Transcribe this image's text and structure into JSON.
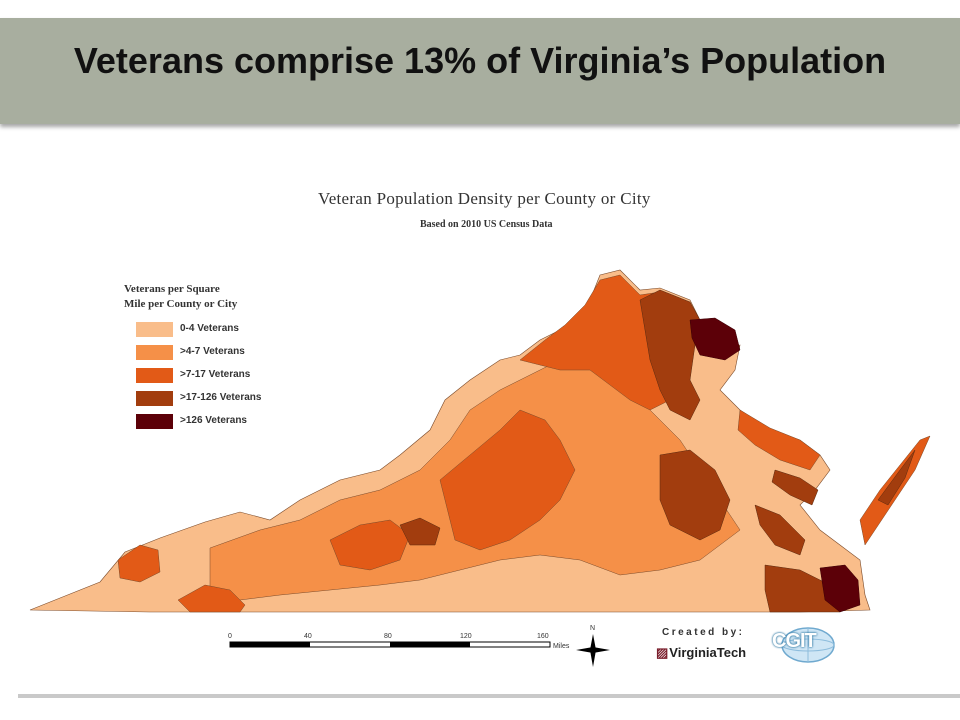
{
  "slide": {
    "title": "Veterans comprise 13% of Virginia’s Population"
  },
  "map": {
    "title": "Veteran Population Density per County or City",
    "subtitle": "Based on 2010 US Census Data",
    "legend": {
      "title_line1": "Veterans per Square",
      "title_line2": "Mile per County or City",
      "items": [
        {
          "label": "0-4 Veterans",
          "color": "#f9bd8a"
        },
        {
          "label": ">4-7 Veterans",
          "color": "#f59048"
        },
        {
          "label": ">7-17 Veterans",
          "color": "#e25a17"
        },
        {
          "label": ">17-126 Veterans",
          "color": "#a23d0e"
        },
        {
          "label": ">126 Veterans",
          "color": "#5c0008"
        }
      ]
    },
    "scale_bar": {
      "ticks": [
        "0",
        "40",
        "80",
        "120",
        "160"
      ],
      "unit": "Miles"
    },
    "north_arrow": "N",
    "credits": {
      "created_by": "Created by:",
      "institution": "VirginiaTech",
      "lab_logo": "CGIT"
    }
  }
}
